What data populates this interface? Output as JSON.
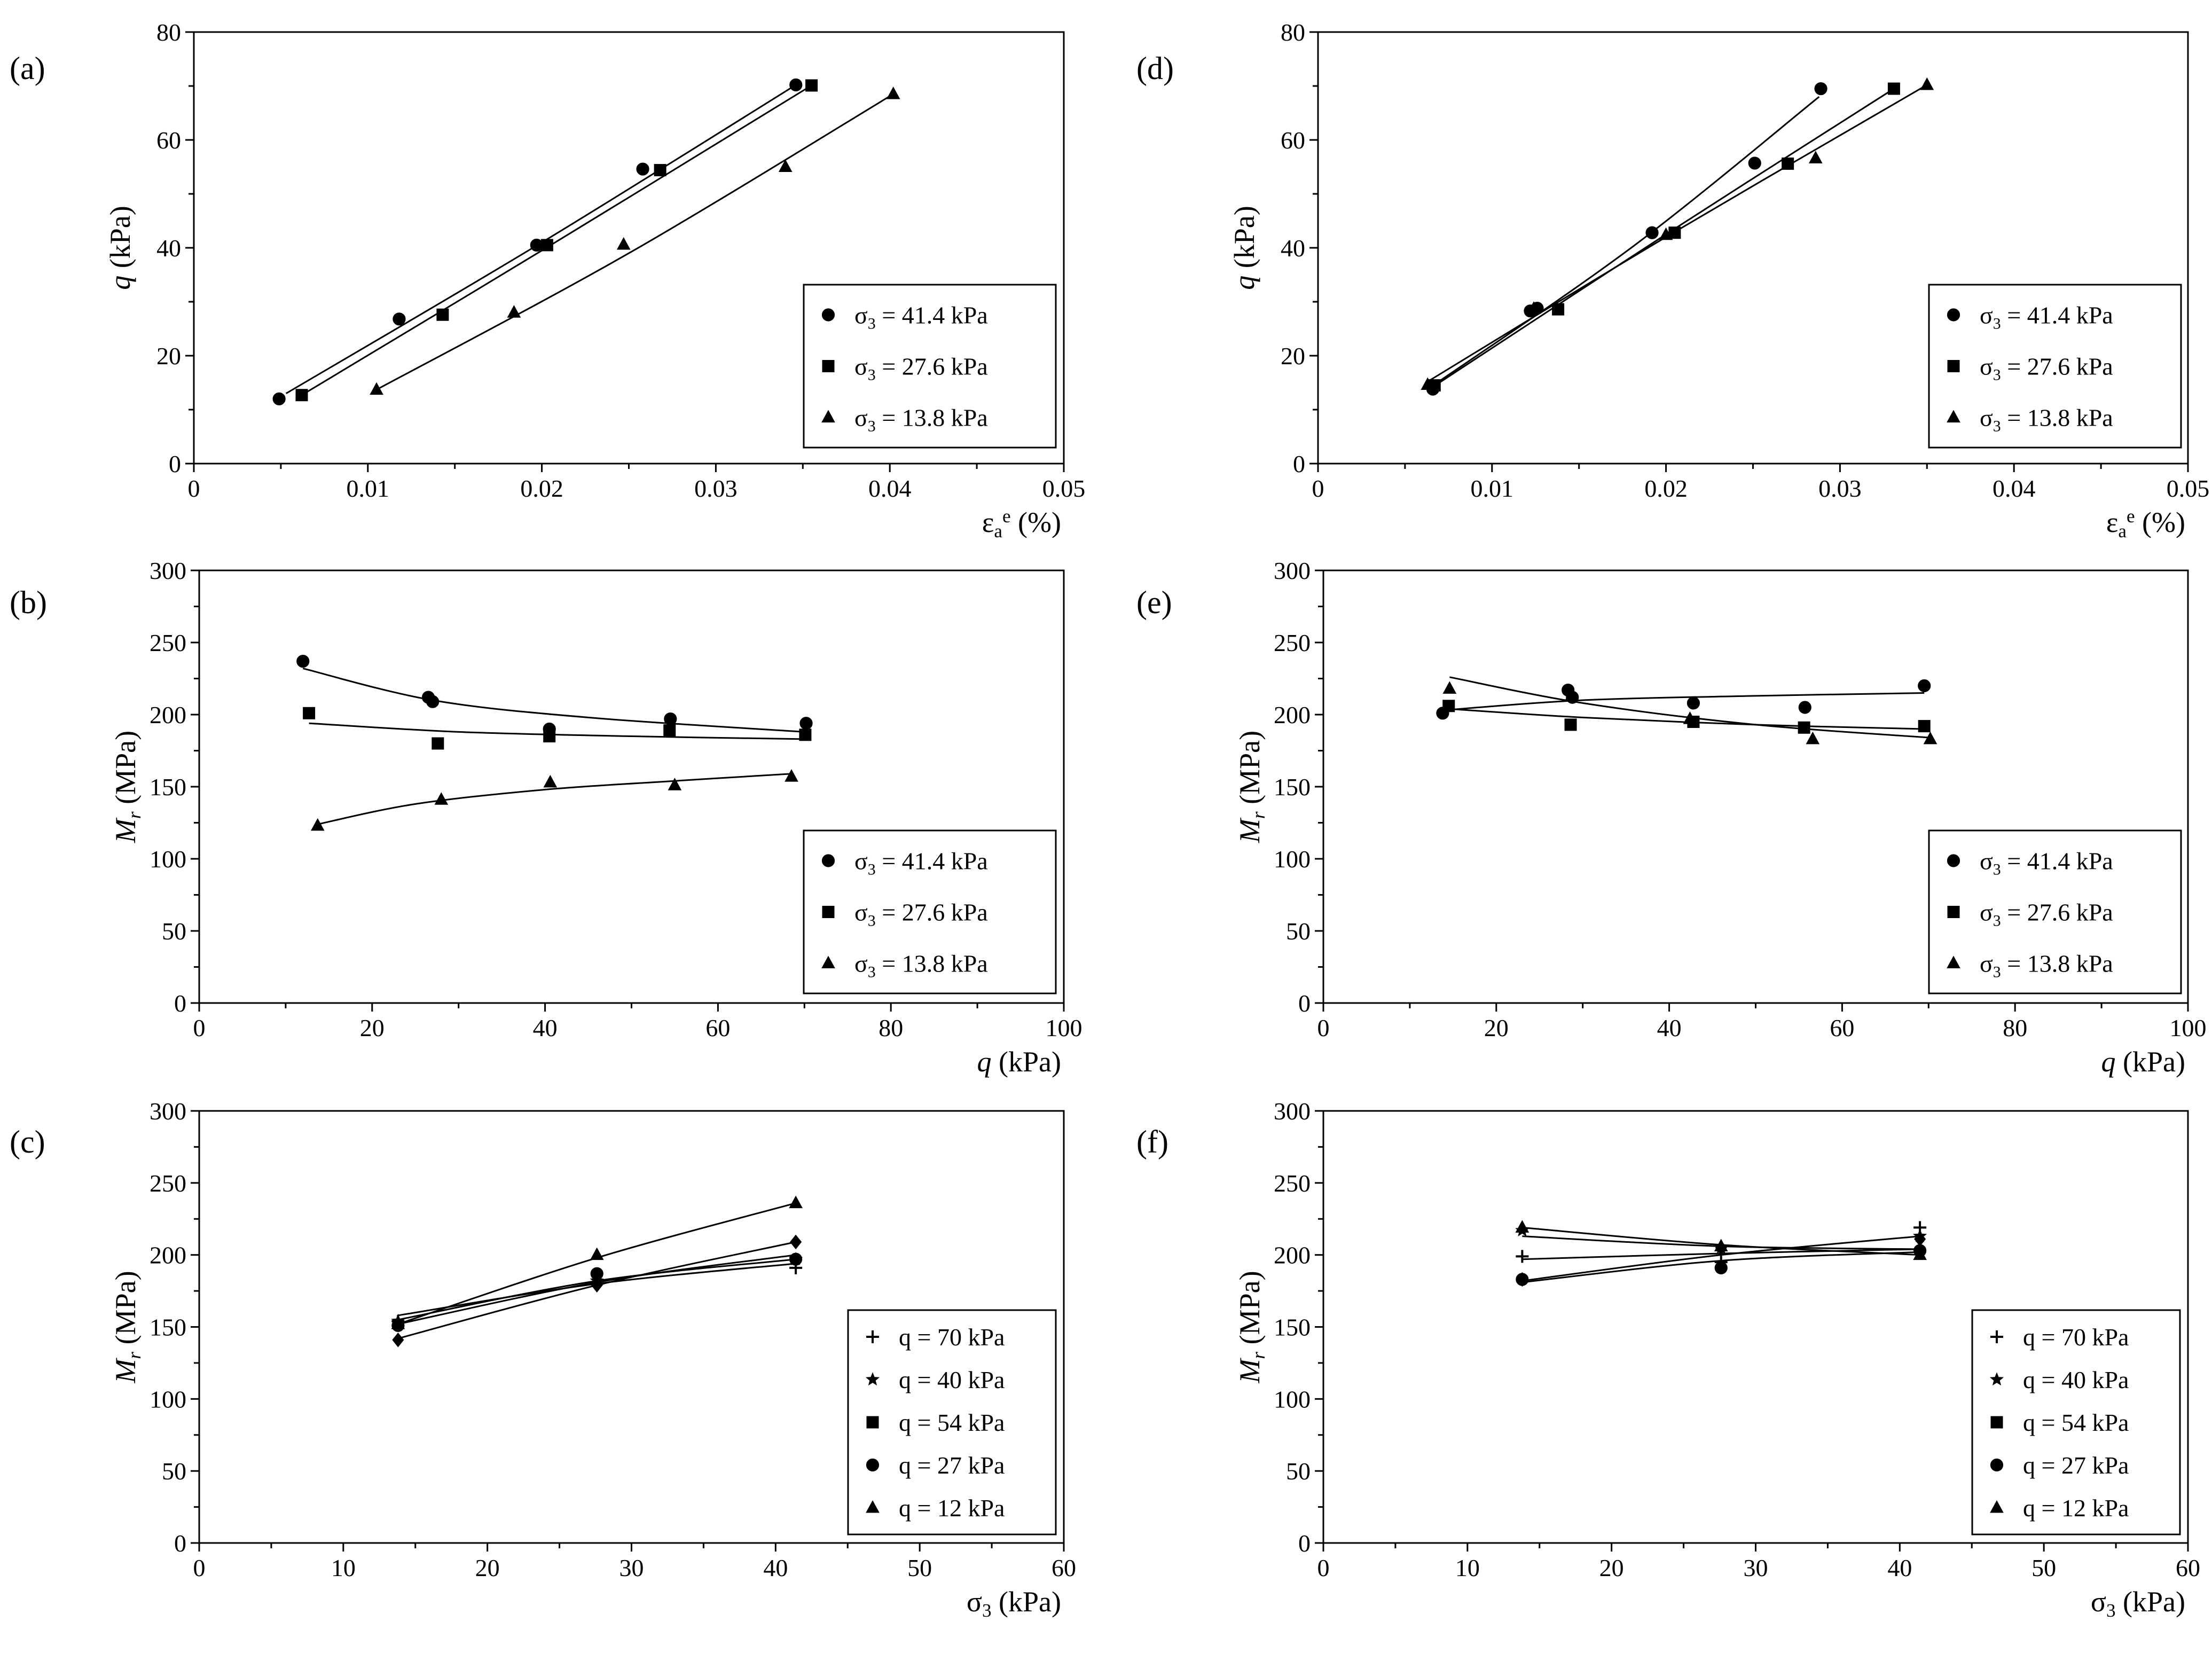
{
  "figure": {
    "background": "#ffffff",
    "ink": "#000000"
  },
  "chart_data": [
    {
      "id": "a",
      "panel_label": "(a)",
      "type": "scatter",
      "xlabel": "εa e (%)",
      "xlabel_parts": [
        "ε",
        "a",
        "e",
        " (%)"
      ],
      "ylabel": "q (kPa)",
      "ylabel_parts": [
        "q",
        " (kPa)"
      ],
      "xlim": [
        0,
        0.05
      ],
      "ylim": [
        0,
        80
      ],
      "xticks": [
        0,
        0.01,
        0.02,
        0.03,
        0.04,
        0.05
      ],
      "xtick_labels": [
        "0",
        "0.01",
        "0.02",
        "0.03",
        "0.04",
        "0.05"
      ],
      "yticks": [
        0,
        20,
        40,
        60,
        80
      ],
      "ytick_labels": [
        "0",
        "20",
        "40",
        "60",
        "80"
      ],
      "legend_position": "bottom-right",
      "series": [
        {
          "name": "σ3 = 41.4 kPa",
          "legend_parts": [
            "σ",
            "3",
            " = 41.4 kPa"
          ],
          "marker": "circle",
          "x": [
            0.0049,
            0.0118,
            0.0197,
            0.0258,
            0.0346
          ],
          "y": [
            12,
            26.8,
            40.5,
            54.6,
            70.2
          ],
          "fit": [
            [
              0.0053,
              13
            ],
            [
              0.02,
              41
            ],
            [
              0.0346,
              70.2
            ]
          ]
        },
        {
          "name": "σ3 = 27.6 kPa",
          "legend_parts": [
            "σ",
            "3",
            " = 27.6 kPa"
          ],
          "marker": "square",
          "x": [
            0.0062,
            0.0143,
            0.0203,
            0.0268,
            0.0355
          ],
          "y": [
            12.7,
            27.6,
            40.5,
            54.4,
            70.1
          ],
          "fit": [
            [
              0.0062,
              12.7
            ],
            [
              0.02,
              39.5
            ],
            [
              0.0355,
              70.1
            ]
          ]
        },
        {
          "name": "σ3 = 13.8 kPa",
          "legend_parts": [
            "σ",
            "3",
            " = 13.8 kPa"
          ],
          "marker": "triangle",
          "x": [
            0.0105,
            0.0184,
            0.0247,
            0.034,
            0.0402
          ],
          "y": [
            13.7,
            28,
            40.6,
            55,
            68.5
          ],
          "fit": [
            [
              0.0105,
              13.7
            ],
            [
              0.025,
              39
            ],
            [
              0.0402,
              68.5
            ]
          ]
        }
      ]
    },
    {
      "id": "b",
      "panel_label": "(b)",
      "type": "scatter",
      "xlabel": "q (kPa)",
      "xlabel_parts": [
        "q",
        " (kPa)"
      ],
      "ylabel": "Mr (MPa)",
      "ylabel_parts": [
        "M",
        "r",
        " (MPa)"
      ],
      "xlim": [
        0,
        100
      ],
      "ylim": [
        0,
        300
      ],
      "xticks": [
        0,
        20,
        40,
        60,
        80,
        100
      ],
      "xtick_labels": [
        "0",
        "20",
        "40",
        "60",
        "80",
        "100"
      ],
      "yticks": [
        0,
        50,
        100,
        150,
        200,
        250,
        300
      ],
      "ytick_labels": [
        "0",
        "50",
        "100",
        "150",
        "200",
        "250",
        "300"
      ],
      "legend_position": "bottom-right",
      "series": [
        {
          "name": "σ3 = 41.4 kPa",
          "legend_parts": [
            "σ",
            "3",
            " = 41.4 kPa"
          ],
          "marker": "circle",
          "x": [
            12,
            26.5,
            27,
            40.5,
            54.5,
            70.2
          ],
          "y": [
            237,
            212,
            209,
            190,
            197,
            194
          ],
          "fit": [
            [
              12,
              232
            ],
            [
              27,
              210
            ],
            [
              45,
              198
            ],
            [
              70,
              188
            ]
          ]
        },
        {
          "name": "σ3 = 27.6 kPa",
          "legend_parts": [
            "σ",
            "3",
            " = 27.6 kPa"
          ],
          "marker": "square",
          "x": [
            12.7,
            27.6,
            40.5,
            54.4,
            70.1
          ],
          "y": [
            201,
            180,
            185,
            189,
            186
          ],
          "fit": [
            [
              12.7,
              194
            ],
            [
              30,
              188
            ],
            [
              50,
              185
            ],
            [
              70,
              183
            ]
          ]
        },
        {
          "name": "σ3 = 13.8 kPa",
          "legend_parts": [
            "σ",
            "3",
            " = 13.8 kPa"
          ],
          "marker": "triangle",
          "x": [
            13.7,
            28,
            40.6,
            55,
            68.5
          ],
          "y": [
            123,
            141,
            153,
            151,
            157
          ],
          "fit": [
            [
              13.7,
              124
            ],
            [
              25,
              138
            ],
            [
              40,
              148
            ],
            [
              55,
              154
            ],
            [
              68.5,
              159
            ]
          ]
        }
      ]
    },
    {
      "id": "c",
      "panel_label": "(c)",
      "type": "scatter",
      "xlabel": "σ3 (kPa)",
      "xlabel_parts": [
        "σ",
        "3",
        " (kPa)"
      ],
      "ylabel": "Mr (MPa)",
      "ylabel_parts": [
        "M",
        "r",
        " (MPa)"
      ],
      "xlim": [
        0,
        60
      ],
      "ylim": [
        0,
        300
      ],
      "xticks": [
        0,
        10,
        20,
        30,
        40,
        50,
        60
      ],
      "xtick_labels": [
        "0",
        "10",
        "20",
        "30",
        "40",
        "50",
        "60"
      ],
      "yticks": [
        0,
        50,
        100,
        150,
        200,
        250,
        300
      ],
      "ytick_labels": [
        "0",
        "50",
        "100",
        "150",
        "200",
        "250",
        "300"
      ],
      "legend_position": "bottom-right",
      "series": [
        {
          "name": "q = 70 kPa",
          "legend_parts": [
            "q = 70 kPa"
          ],
          "marker": "plus",
          "plot_marker": "plus",
          "x": [
            13.8,
            27.6,
            41.4
          ],
          "y": [
            154,
            180,
            191
          ],
          "fit": [
            [
              13.8,
              158
            ],
            [
              27.6,
              180
            ],
            [
              41.4,
              194
            ]
          ]
        },
        {
          "name": "q = 40 kPa",
          "legend_parts": [
            "q = 40 kPa"
          ],
          "marker": "star",
          "plot_marker": "star",
          "x": [
            13.8,
            27.6,
            41.4
          ],
          "y": [
            154,
            182,
            197
          ],
          "fit": [
            [
              13.8,
              155
            ],
            [
              27.6,
              182
            ],
            [
              41.4,
              197
            ]
          ]
        },
        {
          "name": "q = 54 kPa",
          "legend_parts": [
            "q = 54 kPa"
          ],
          "marker": "square",
          "plot_marker": "diamond",
          "x": [
            13.8,
            27.6,
            41.4
          ],
          "y": [
            141,
            179,
            209
          ],
          "fit": [
            [
              13.8,
              142
            ],
            [
              27.6,
              179
            ],
            [
              41.4,
              209
            ]
          ]
        },
        {
          "name": "q = 27 kPa",
          "legend_parts": [
            "q = 27 kPa"
          ],
          "marker": "circle",
          "plot_marker": "circle",
          "x": [
            13.8,
            27.6,
            41.4
          ],
          "y": [
            151,
            187,
            197
          ],
          "fit": [
            [
              13.8,
              152
            ],
            [
              27.6,
              181
            ],
            [
              41.4,
              200
            ]
          ]
        },
        {
          "name": "q = 12 kPa",
          "legend_parts": [
            "q = 12 kPa"
          ],
          "marker": "triangle",
          "plot_marker": "triangle",
          "x": [
            13.8,
            27.6,
            41.4
          ],
          "y": [
            152,
            200,
            236
          ],
          "fit": [
            [
              13.8,
              152
            ],
            [
              27.6,
              198
            ],
            [
              41.4,
              236
            ]
          ]
        }
      ]
    },
    {
      "id": "d",
      "panel_label": "(d)",
      "type": "scatter",
      "xlabel": "εa e (%)",
      "xlabel_parts": [
        "ε",
        "a",
        "e",
        " (%)"
      ],
      "ylabel": "q (kPa)",
      "ylabel_parts": [
        "q",
        " (kPa)"
      ],
      "xlim": [
        0,
        0.05
      ],
      "ylim": [
        0,
        80
      ],
      "xticks": [
        0,
        0.01,
        0.02,
        0.03,
        0.04,
        0.05
      ],
      "xtick_labels": [
        "0",
        "0.01",
        "0.02",
        "0.03",
        "0.04",
        "0.05"
      ],
      "yticks": [
        0,
        20,
        40,
        60,
        80
      ],
      "ytick_labels": [
        "0",
        "20",
        "40",
        "60",
        "80"
      ],
      "legend_position": "bottom-right",
      "series": [
        {
          "name": "σ3 = 41.4 kPa",
          "legend_parts": [
            "σ",
            "3",
            " = 41.4 kPa"
          ],
          "marker": "circle",
          "x": [
            0.0066,
            0.0122,
            0.0126,
            0.0192,
            0.0251,
            0.0289
          ],
          "y": [
            13.8,
            28.3,
            28.8,
            42.8,
            55.7,
            69.5
          ],
          "fit": [
            [
              0.0063,
              13.8
            ],
            [
              0.018,
              40
            ],
            [
              0.0288,
              68
            ]
          ]
        },
        {
          "name": "σ3 = 27.6 kPa",
          "legend_parts": [
            "σ",
            "3",
            " = 27.6 kPa"
          ],
          "marker": "square",
          "x": [
            0.0067,
            0.0138,
            0.0205,
            0.027,
            0.0331
          ],
          "y": [
            14.5,
            28.6,
            42.8,
            55.6,
            69.5
          ],
          "fit": [
            [
              0.0065,
              14
            ],
            [
              0.02,
              42.5
            ],
            [
              0.0331,
              69.5
            ]
          ]
        },
        {
          "name": "σ3 = 13.8 kPa",
          "legend_parts": [
            "σ",
            "3",
            " = 13.8 kPa"
          ],
          "marker": "triangle",
          "x": [
            0.0063,
            0.0124,
            0.02,
            0.0286,
            0.035
          ],
          "y": [
            14.6,
            28.7,
            42.4,
            56.6,
            70.2
          ],
          "fit": [
            [
              0.0062,
              15
            ],
            [
              0.02,
              42
            ],
            [
              0.035,
              70.2
            ]
          ]
        }
      ]
    },
    {
      "id": "e",
      "panel_label": "(e)",
      "type": "scatter",
      "xlabel": "q (kPa)",
      "xlabel_parts": [
        "q",
        " (kPa)"
      ],
      "ylabel": "Mr (MPa)",
      "ylabel_parts": [
        "M",
        "r",
        " (MPa)"
      ],
      "xlim": [
        0,
        100
      ],
      "ylim": [
        0,
        300
      ],
      "xticks": [
        0,
        20,
        40,
        60,
        80,
        100
      ],
      "xtick_labels": [
        "0",
        "20",
        "40",
        "60",
        "80",
        "100"
      ],
      "yticks": [
        0,
        50,
        100,
        150,
        200,
        250,
        300
      ],
      "ytick_labels": [
        "0",
        "50",
        "100",
        "150",
        "200",
        "250",
        "300"
      ],
      "legend_position": "bottom-right",
      "series": [
        {
          "name": "σ3 = 41.4 kPa",
          "legend_parts": [
            "σ",
            "3",
            " = 41.4 kPa"
          ],
          "marker": "circle",
          "x": [
            13.8,
            28.3,
            28.8,
            42.8,
            55.7,
            69.5
          ],
          "y": [
            201,
            217,
            212,
            208,
            205,
            220
          ],
          "fit": [
            [
              13.8,
              203
            ],
            [
              30,
              210
            ],
            [
              50,
              213
            ],
            [
              69.5,
              215
            ]
          ]
        },
        {
          "name": "σ3 = 27.6 kPa",
          "legend_parts": [
            "σ",
            "3",
            " = 27.6 kPa"
          ],
          "marker": "square",
          "x": [
            14.5,
            28.6,
            42.8,
            55.6,
            69.5
          ],
          "y": [
            206,
            193,
            195,
            191,
            192
          ],
          "fit": [
            [
              14.5,
              204
            ],
            [
              30,
              198
            ],
            [
              50,
              193
            ],
            [
              69.5,
              190
            ]
          ]
        },
        {
          "name": "σ3 = 13.8 kPa",
          "legend_parts": [
            "σ",
            "3",
            " = 13.8 kPa"
          ],
          "marker": "triangle",
          "x": [
            14.6,
            28.7,
            42.4,
            56.6,
            70.2
          ],
          "y": [
            218,
            213,
            197,
            183,
            183
          ],
          "fit": [
            [
              14.6,
              226
            ],
            [
              30,
              208
            ],
            [
              50,
              193
            ],
            [
              70.2,
              184
            ]
          ]
        }
      ]
    },
    {
      "id": "f",
      "panel_label": "(f)",
      "type": "scatter",
      "xlabel": "σ3 (kPa)",
      "xlabel_parts": [
        "σ",
        "3",
        " (kPa)"
      ],
      "ylabel": "Mr (MPa)",
      "ylabel_parts": [
        "M",
        "r",
        " (MPa)"
      ],
      "xlim": [
        0,
        60
      ],
      "ylim": [
        0,
        300
      ],
      "xticks": [
        0,
        10,
        20,
        30,
        40,
        50,
        60
      ],
      "xtick_labels": [
        "0",
        "10",
        "20",
        "30",
        "40",
        "50",
        "60"
      ],
      "yticks": [
        0,
        50,
        100,
        150,
        200,
        250,
        300
      ],
      "ytick_labels": [
        "0",
        "50",
        "100",
        "150",
        "200",
        "250",
        "300"
      ],
      "legend_position": "bottom-right",
      "series": [
        {
          "name": "q = 70 kPa",
          "legend_parts": [
            "q = 70 kPa"
          ],
          "marker": "plus",
          "plot_marker": "plus",
          "x": [
            13.8,
            27.6,
            41.4
          ],
          "y": [
            199,
            195,
            219
          ],
          "fit": [
            [
              13.8,
              197
            ],
            [
              27.6,
              201
            ],
            [
              41.4,
              204
            ]
          ]
        },
        {
          "name": "q = 40 kPa",
          "legend_parts": [
            "q = 40 kPa"
          ],
          "marker": "star",
          "plot_marker": "star",
          "x": [
            13.8,
            27.6,
            41.4
          ],
          "y": [
            217,
            205,
            213
          ],
          "fit": [
            [
              13.8,
              213
            ],
            [
              27.6,
              206
            ],
            [
              41.4,
              204
            ]
          ]
        },
        {
          "name": "q = 54 kPa",
          "legend_parts": [
            "q = 54 kPa"
          ],
          "marker": "square",
          "plot_marker": "diamond",
          "x": [
            13.8,
            27.6,
            41.4
          ],
          "y": [
            183,
            205,
            211
          ],
          "fit": [
            [
              13.8,
              182
            ],
            [
              27.6,
              200
            ],
            [
              41.4,
              213
            ]
          ]
        },
        {
          "name": "q = 27 kPa",
          "legend_parts": [
            "q = 27 kPa"
          ],
          "marker": "circle",
          "plot_marker": "circle",
          "x": [
            13.8,
            27.6,
            41.4
          ],
          "y": [
            183,
            191,
            203
          ],
          "fit": [
            [
              13.8,
              181
            ],
            [
              27.6,
              196
            ],
            [
              41.4,
              202
            ]
          ]
        },
        {
          "name": "q = 12 kPa",
          "legend_parts": [
            "q = 12 kPa"
          ],
          "marker": "triangle",
          "plot_marker": "triangle",
          "x": [
            13.8,
            27.6,
            41.4
          ],
          "y": [
            219,
            206,
            200
          ],
          "fit": [
            [
              13.8,
              219
            ],
            [
              27.6,
              207
            ],
            [
              41.4,
              200
            ]
          ]
        }
      ]
    }
  ]
}
